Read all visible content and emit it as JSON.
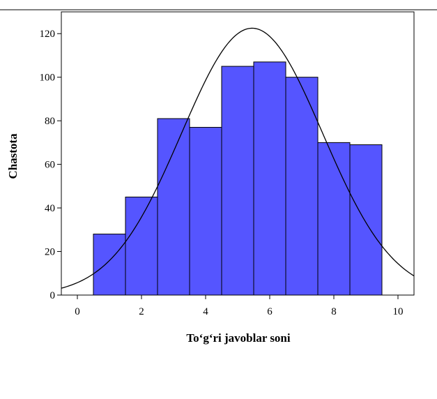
{
  "chart_data": {
    "type": "bar",
    "subtype": "histogram",
    "xlabel": "To‘g‘ri javoblar soni",
    "ylabel": "Chastota",
    "xlim": [
      -0.5,
      10.5
    ],
    "ylim": [
      0,
      130
    ],
    "x_ticks": [
      0,
      2,
      4,
      6,
      8,
      10
    ],
    "y_ticks": [
      0,
      20,
      40,
      60,
      80,
      100,
      120
    ],
    "bins": [
      {
        "x0": 0.5,
        "x1": 1.5,
        "value": 28
      },
      {
        "x0": 1.5,
        "x1": 2.5,
        "value": 45
      },
      {
        "x0": 2.5,
        "x1": 3.5,
        "value": 81
      },
      {
        "x0": 3.5,
        "x1": 4.5,
        "value": 77
      },
      {
        "x0": 4.5,
        "x1": 5.5,
        "value": 105
      },
      {
        "x0": 5.5,
        "x1": 6.5,
        "value": 107
      },
      {
        "x0": 6.5,
        "x1": 7.5,
        "value": 100
      },
      {
        "x0": 7.5,
        "x1": 8.5,
        "value": 70
      },
      {
        "x0": 8.5,
        "x1": 9.5,
        "value": 69
      }
    ],
    "normal_curve": {
      "mean": 5.45,
      "sd": 2.2,
      "peak": 122.5
    },
    "grid": false,
    "bar_color": "#5555ff",
    "bar_edge_color": "#000000",
    "curve_color": "#000000"
  }
}
